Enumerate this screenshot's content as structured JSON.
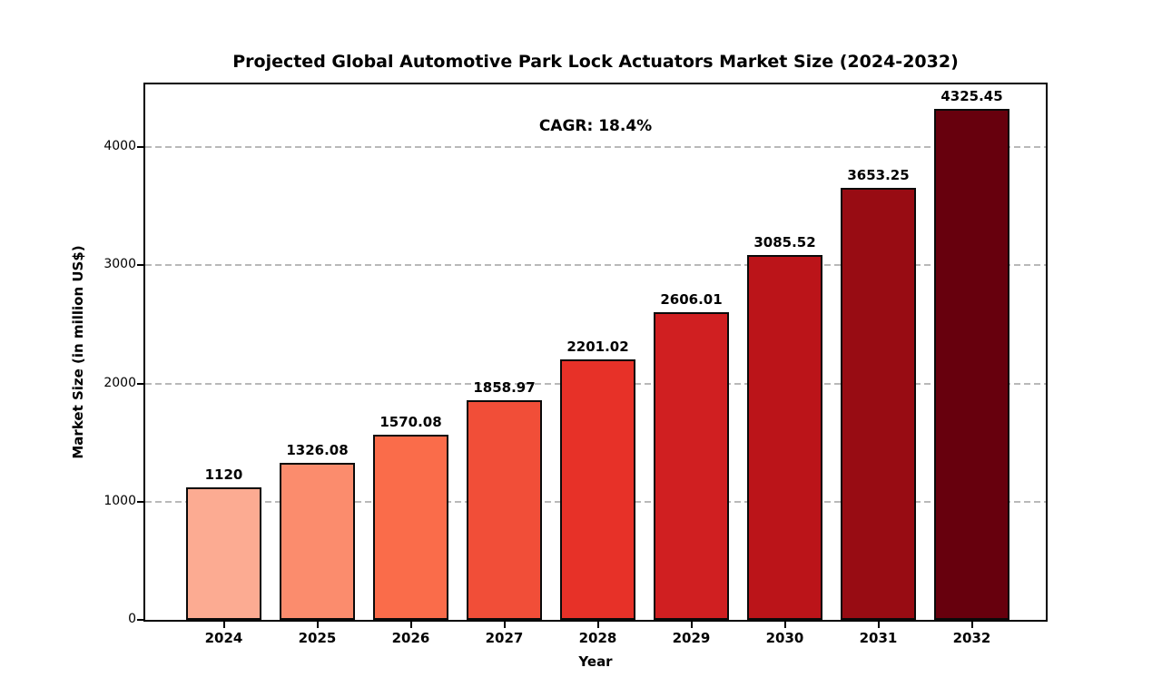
{
  "chart_data": {
    "type": "bar",
    "title": "Projected Global Automotive Park Lock Actuators Market Size (2024-2032)",
    "annotation": "CAGR: 18.4%",
    "xlabel": "Year",
    "ylabel": "Market Size (in million US$)",
    "categories": [
      "2024",
      "2025",
      "2026",
      "2027",
      "2028",
      "2029",
      "2030",
      "2031",
      "2032"
    ],
    "values": [
      1120,
      1326.08,
      1570.08,
      1858.97,
      2201.02,
      2606.01,
      3085.52,
      3653.25,
      4325.45
    ],
    "value_labels": [
      "1120",
      "1326.08",
      "1570.08",
      "1858.97",
      "2201.02",
      "2606.01",
      "3085.52",
      "3653.25",
      "4325.45"
    ],
    "bar_colors": [
      "#fcab92",
      "#fb8c6d",
      "#fa6c4a",
      "#f14e38",
      "#e73128",
      "#d01f21",
      "#bb1419",
      "#980c13",
      "#67000d"
    ],
    "bar_edge_color": "#0a0a0a",
    "grid_color": "#b9b9b9",
    "ylim": [
      0,
      4532
    ],
    "yticks": [
      0,
      1000,
      2000,
      3000,
      4000
    ],
    "grid": "horizontal-dashed",
    "legend": "none"
  }
}
